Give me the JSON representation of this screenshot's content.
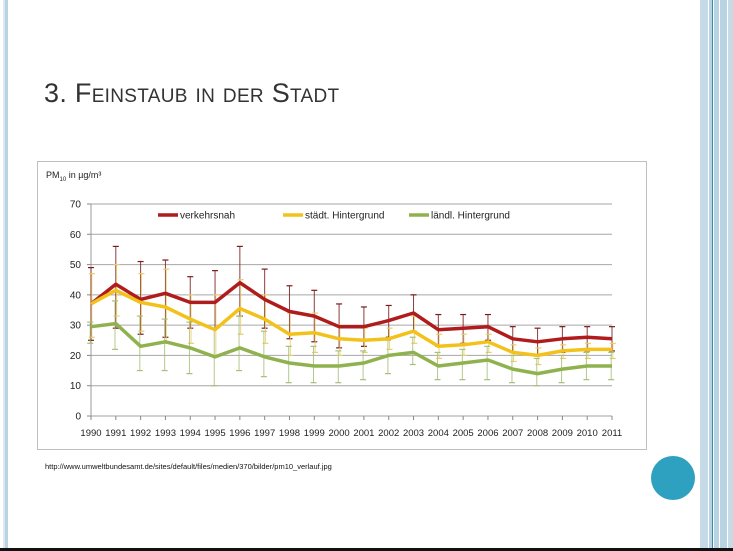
{
  "slide": {
    "title": "3. Feinstaub in der Stadt",
    "source_text": "http://www.umweltbundesamt.de/sites/default/files/medien/370/bilder/pm10_verlauf.jpg",
    "accent_color": "#2ea0c0",
    "stripe_color": "#b9d3e3"
  },
  "chart_data": {
    "type": "line",
    "title": "",
    "ylabel_prefix": "PM",
    "ylabel_sub": "10",
    "ylabel_suffix": " in µg/m³",
    "xlabel": "",
    "ylim": [
      0,
      70
    ],
    "yticks": [
      0,
      10,
      20,
      30,
      40,
      50,
      60,
      70
    ],
    "grid": true,
    "legend_position": "top",
    "x": [
      "1990",
      "1991",
      "1992",
      "1993",
      "1994",
      "1995",
      "1996",
      "1997",
      "1998",
      "1999",
      "2000",
      "2001",
      "2002",
      "2003",
      "2004",
      "2005",
      "2006",
      "2007",
      "2008",
      "2009",
      "2010",
      "2011"
    ],
    "series": [
      {
        "name": "verkehrsnah",
        "color": "#b01c1c",
        "values": [
          37,
          43.5,
          38.5,
          40.5,
          37.5,
          37.5,
          44,
          38.5,
          34.5,
          33,
          29.5,
          29.5,
          31.5,
          34,
          28.5,
          29,
          29.5,
          25.5,
          24.5,
          25.5,
          26,
          25.5
        ],
        "err_upper": [
          49,
          56,
          51,
          51.5,
          46,
          48,
          56,
          48.5,
          43,
          41.5,
          37,
          36,
          36.5,
          40,
          33.5,
          33.5,
          33.5,
          29.5,
          29,
          29.5,
          29.5,
          29.5
        ],
        "err_lower": [
          25,
          29,
          27,
          26,
          29,
          29,
          33,
          29,
          25.5,
          24.5,
          22.5,
          23,
          26,
          28,
          23,
          24,
          25,
          21,
          20,
          21,
          21.5,
          21.5
        ]
      },
      {
        "name": "städt. Hintergrund",
        "color": "#f2c21b",
        "values": [
          37,
          41.5,
          37.5,
          36,
          32,
          28.5,
          35.5,
          32,
          27,
          27.5,
          25.5,
          25,
          25.5,
          28,
          23,
          23.5,
          24.5,
          21,
          20,
          21.5,
          22,
          22
        ],
        "err_upper": [
          47,
          50,
          47,
          48.5,
          40,
          40,
          45,
          40,
          34,
          34,
          30,
          29,
          29,
          33,
          27,
          27,
          27,
          23.5,
          22.5,
          23.5,
          24,
          24
        ],
        "err_lower": [
          26,
          33,
          28,
          24,
          24,
          20,
          27,
          24,
          20,
          21,
          20,
          21,
          22,
          24,
          19,
          20,
          21,
          18,
          17,
          19,
          19,
          19
        ]
      },
      {
        "name": "ländl. Hintergrund",
        "color": "#8fb24f",
        "values": [
          29.5,
          30.5,
          23,
          24.5,
          22.5,
          19.5,
          22.5,
          19.5,
          17.5,
          16.5,
          16.5,
          17.5,
          20,
          21,
          16.5,
          17.5,
          18.5,
          15.5,
          14,
          15.5,
          16.5,
          16.5
        ],
        "err_upper": [
          31,
          38,
          33,
          32,
          31,
          29,
          33,
          28,
          23,
          23,
          21.5,
          21.5,
          25,
          26,
          21,
          22,
          23,
          20,
          19,
          20,
          21,
          21
        ],
        "err_lower": [
          24,
          22,
          15,
          15,
          14,
          10,
          15,
          13,
          11,
          11,
          11,
          12,
          14,
          17,
          12,
          12,
          12,
          11,
          10,
          11,
          12,
          12
        ]
      }
    ]
  }
}
